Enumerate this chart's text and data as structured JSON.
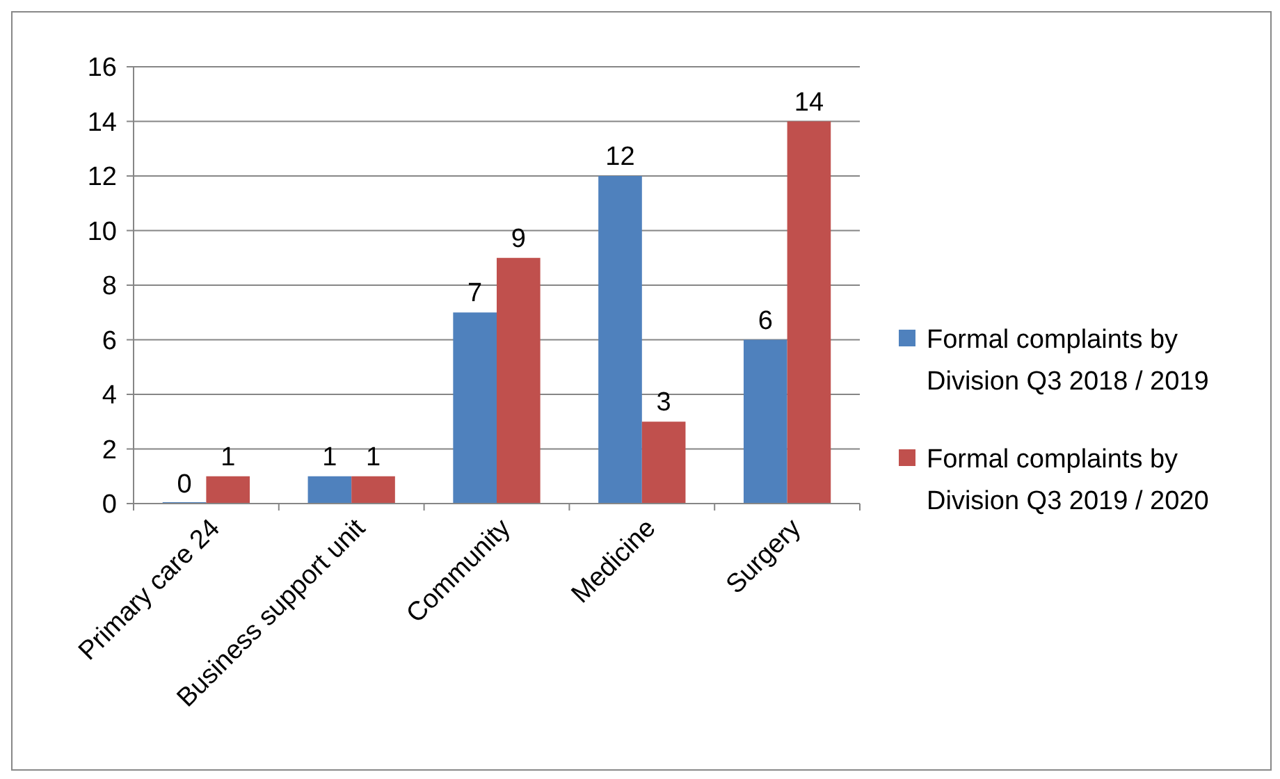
{
  "chart_data": {
    "type": "bar",
    "categories": [
      "Primary care 24",
      "Business support unit",
      "Community",
      "Medicine",
      "Surgery"
    ],
    "series": [
      {
        "name": "Formal complaints by Division Q3 2018 / 2019",
        "color": "#4f81bd",
        "values": [
          0,
          1,
          7,
          12,
          6
        ]
      },
      {
        "name": "Formal complaints by Division Q3 2019 / 2020",
        "color": "#c0504d",
        "values": [
          1,
          1,
          9,
          3,
          14
        ]
      }
    ],
    "ylim": [
      0,
      16
    ],
    "yticks": [
      0,
      2,
      4,
      6,
      8,
      10,
      12,
      14,
      16
    ],
    "grid": "y",
    "legend": "right",
    "data_labels": true
  }
}
